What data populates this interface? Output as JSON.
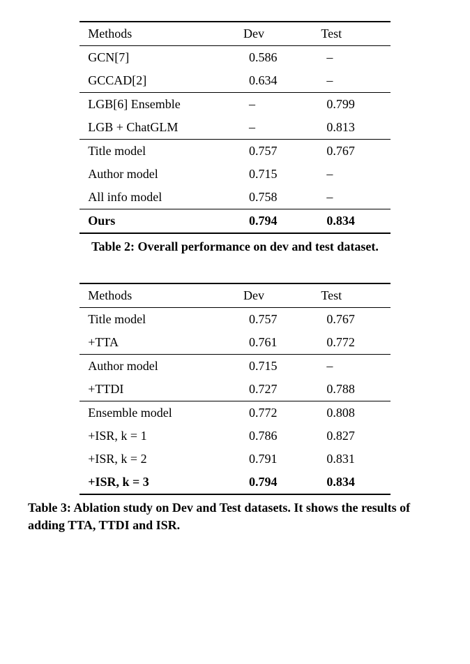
{
  "table2": {
    "columns": [
      "Methods",
      "Dev",
      "Test"
    ],
    "groups": [
      [
        {
          "method": "GCN[7]",
          "dev": "0.586",
          "test": "–"
        },
        {
          "method": "GCCAD[2]",
          "dev": "0.634",
          "test": "–"
        }
      ],
      [
        {
          "method": "LGB[6] Ensemble",
          "dev": "–",
          "test": "0.799"
        },
        {
          "method": "LGB + ChatGLM",
          "dev": "–",
          "test": "0.813"
        }
      ],
      [
        {
          "method": "Title model",
          "dev": "0.757",
          "test": "0.767"
        },
        {
          "method": "Author model",
          "dev": "0.715",
          "test": "–"
        },
        {
          "method": "All info model",
          "dev": "0.758",
          "test": "–"
        }
      ],
      [
        {
          "method": "Ours",
          "dev": "0.794",
          "test": "0.834",
          "bold": true
        }
      ]
    ],
    "caption": "Table 2: Overall performance on dev and test dataset."
  },
  "table3": {
    "columns": [
      "Methods",
      "Dev",
      "Test"
    ],
    "groups": [
      [
        {
          "method": "Title model",
          "dev": "0.757",
          "test": "0.767"
        },
        {
          "method": "+TTA",
          "dev": "0.761",
          "test": "0.772"
        }
      ],
      [
        {
          "method": "Author model",
          "dev": "0.715",
          "test": "–"
        },
        {
          "method": "+TTDI",
          "dev": "0.727",
          "test": "0.788"
        }
      ],
      [
        {
          "method": "Ensemble model",
          "dev": "0.772",
          "test": "0.808"
        },
        {
          "method": "+ISR, k = 1",
          "dev": "0.786",
          "test": "0.827"
        },
        {
          "method": "+ISR, k = 2",
          "dev": "0.791",
          "test": "0.831"
        },
        {
          "method": "+ISR, k = 3",
          "dev": "0.794",
          "test": "0.834",
          "bold": true
        }
      ]
    ],
    "caption": "Table 3: Ablation study on Dev and Test datasets. It shows the results of adding TTA, TTDI and ISR."
  },
  "col_widths": [
    "50%",
    "25%",
    "25%"
  ]
}
